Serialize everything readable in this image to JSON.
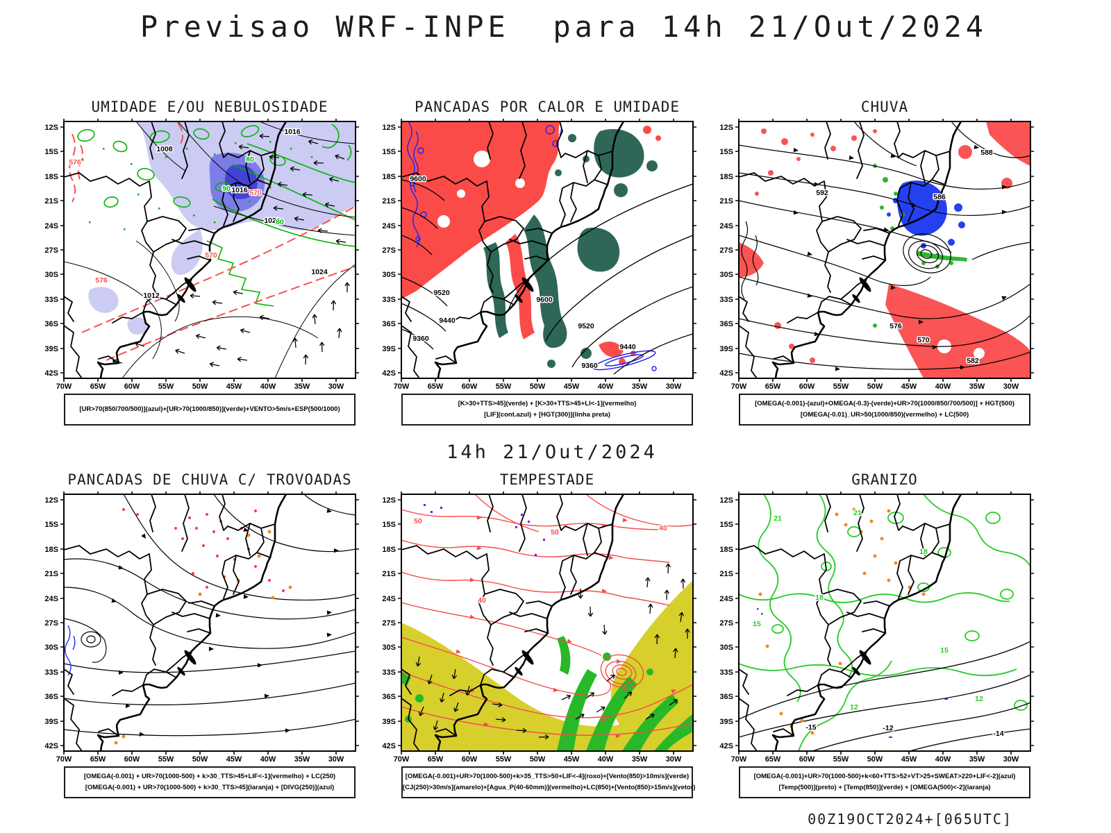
{
  "header": {
    "title": "Previsao WRF-INPE  para 14h 21/Out/2024"
  },
  "subtitle": "14h 21/Out/2024",
  "footer": {
    "run_info": "00Z19OCT2024+[065UTC]"
  },
  "axes": {
    "lat": [
      "12S",
      "15S",
      "18S",
      "21S",
      "24S",
      "27S",
      "30S",
      "33S",
      "36S",
      "39S",
      "42S"
    ],
    "lon": [
      "70W",
      "65W",
      "60W",
      "55W",
      "50W",
      "45W",
      "40W",
      "35W",
      "30W"
    ]
  },
  "panels": [
    {
      "title": "UMIDADE E/OU NEBULOSIDADE",
      "caption": [
        "[UR>70(850/700/500)](azul)+[UR>70(1000/850)](verde)+VENTO>5m/s+ESP(500/1000)"
      ],
      "labels": {
        "black": [
          "1008",
          "1016",
          "1016",
          "1012",
          "1020",
          "1024"
        ],
        "red": [
          "570",
          "576",
          "570",
          "576"
        ],
        "green": [
          "80",
          "90",
          "80"
        ]
      }
    },
    {
      "title": "PANCADAS POR CALOR E UMIDADE",
      "caption": [
        "[K>30+TTS>45](verde) + [K>30+TTS>45+LI<-1](vermelho)",
        "[LIF](cont.azul) + [HGT(300)](linha preta)"
      ],
      "labels": {
        "black": [
          "9600",
          "9520",
          "9440",
          "9360",
          "9600",
          "9520",
          "9440",
          "9360"
        ]
      }
    },
    {
      "title": "CHUVA",
      "caption": [
        "[OMEGA(-0.001)-(azul)+OMEGA(-0.3)-(verde)+UR>70(1000/850/700/500)] + HGT(500)",
        "[OMEGA(-0.01)_UR>50(1000/850)(vermelho) + LC(500)"
      ],
      "labels": {
        "black": [
          "592",
          "586",
          "588",
          "576",
          "570",
          "582"
        ]
      }
    },
    {
      "title": "PANCADAS DE CHUVA C/ TROVOADAS",
      "caption": [
        "[OMEGA(-0.001) + UR>70(1000-500) + k>30_TTS>45+LIF<-1](vermelho) + LC(250)",
        "[OMEGA(-0.001) + UR>70(1000-500) + k>30_TTS>45](laranja) + [DIVG(250)](azul)"
      ],
      "labels": {}
    },
    {
      "title": "TEMPESTADE",
      "caption": [
        "[OMEGA(-0.001)+UR>70(1000-500)+k>35_TTS>50+LIF<-4](roxo)+[Vento(850)>10m/s](verde)",
        "[CJ(250)>30m/s](amarelo)+[Agua_P(40-60mm)](vermelho)+LC(850)+[Vento(850)>15m/s](vetor)"
      ],
      "labels": {
        "red": [
          "50",
          "50",
          "40",
          "40"
        ]
      }
    },
    {
      "title": "GRANIZO",
      "caption": [
        "[OMEGA(-0.001)+UR>70(1000-500)+k<60+TTS>52+VT>25+SWEAT>220+LIF<-2](azul)",
        "[Temp(500)](preto) + [Temp(850)](verde) + [OMEGA(500)<-2](laranja)"
      ],
      "labels": {
        "green": [
          "21",
          "21",
          "18",
          "18",
          "15",
          "15",
          "12",
          "12"
        ],
        "black": [
          "-12",
          "-15",
          "-14"
        ]
      }
    }
  ],
  "colors": {
    "humidity_shade_light": "#cbcbf3",
    "humidity_shade_mid": "#7d7de8",
    "humidity_shade_dark": "#4343d6",
    "green_contour": "#00b300",
    "red_dashed_contour": "#f8504e",
    "convective_red_fill": "#fb4b49",
    "teal_fill": "#2e6757",
    "blue_contour": "#2323f0",
    "rain_red": "#fa4b4b",
    "rain_blue": "#2540ef",
    "rain_green": "#2db82d",
    "orange_speckle": "#ef8a1f",
    "storm_yellow": "#d7cf2c",
    "storm_green": "#28b828",
    "storm_purple": "#8a00cc",
    "hail_green": "#24cc24",
    "map_line": "#000000"
  }
}
